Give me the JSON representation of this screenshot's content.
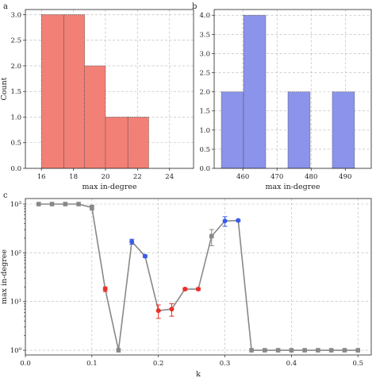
{
  "chart_data": [
    {
      "panel": "a",
      "type": "bar",
      "xlabel": "max in-degree",
      "ylabel": "Count",
      "xlim": [
        15,
        25.5
      ],
      "ylim": [
        0,
        3.1
      ],
      "xticks": [
        16,
        18,
        20,
        22,
        24
      ],
      "yticks": [
        0.0,
        0.5,
        1.0,
        1.5,
        2.0,
        2.5,
        3.0
      ],
      "bars": [
        {
          "x0": 16.0,
          "x1": 17.4,
          "value": 3
        },
        {
          "x0": 17.4,
          "x1": 18.7,
          "value": 3
        },
        {
          "x0": 18.7,
          "x1": 20.0,
          "value": 2
        },
        {
          "x0": 20.0,
          "x1": 21.4,
          "value": 1
        },
        {
          "x0": 21.4,
          "x1": 22.7,
          "value": 1
        }
      ],
      "color": "#f28076",
      "grid": true
    },
    {
      "panel": "b",
      "type": "bar",
      "xlabel": "max in-degree",
      "ylabel": "",
      "xlim": [
        451.6,
        497.6
      ],
      "ylim": [
        0,
        4.15
      ],
      "xticks": [
        460,
        470,
        480,
        490
      ],
      "yticks": [
        0.0,
        0.5,
        1.0,
        1.5,
        2.0,
        2.5,
        3.0,
        3.5,
        4.0
      ],
      "bars": [
        {
          "x0": 453.7,
          "x1": 460.2,
          "value": 2
        },
        {
          "x0": 460.2,
          "x1": 466.7,
          "value": 4
        },
        {
          "x0": 466.7,
          "x1": 473.2,
          "value": 0
        },
        {
          "x0": 473.2,
          "x1": 479.7,
          "value": 2
        },
        {
          "x0": 479.7,
          "x1": 486.2,
          "value": 0
        },
        {
          "x0": 486.2,
          "x1": 492.7,
          "value": 2
        }
      ],
      "color": "#8b93ea",
      "grid": true
    },
    {
      "panel": "c",
      "type": "line",
      "xlabel": "k",
      "ylabel": "max in-degree",
      "xlim": [
        0,
        0.52
      ],
      "ylim": [
        0.8,
        1300
      ],
      "yscale": "log",
      "xticks": [
        0.0,
        0.1,
        0.2,
        0.3,
        0.4,
        0.5
      ],
      "yticks": [
        1,
        10,
        100,
        1000
      ],
      "ytick_labels": [
        "10⁰",
        "10¹",
        "10²",
        "10³"
      ],
      "line_color": "#888888",
      "grid": true,
      "x": [
        0.02,
        0.04,
        0.06,
        0.08,
        0.1,
        0.12,
        0.14,
        0.16,
        0.18,
        0.2,
        0.22,
        0.24,
        0.26,
        0.28,
        0.3,
        0.32,
        0.34,
        0.36,
        0.38,
        0.4,
        0.42,
        0.44,
        0.46,
        0.48,
        0.5
      ],
      "y": [
        1000,
        1000,
        1000,
        1000,
        850,
        18,
        1,
        170,
        85,
        6.5,
        7,
        18,
        18,
        220,
        450,
        460,
        1,
        1,
        1,
        1,
        1,
        1,
        1,
        1,
        1
      ],
      "err_low": [
        0,
        0,
        0,
        0,
        100,
        2,
        0,
        20,
        5,
        2,
        2,
        1,
        1,
        80,
        100,
        20,
        0,
        0,
        0,
        0,
        0,
        0,
        0,
        0,
        0
      ],
      "err_high": [
        0,
        0,
        0,
        0,
        100,
        2,
        0,
        20,
        5,
        2,
        2,
        1,
        1,
        80,
        100,
        20,
        0,
        0,
        0,
        0,
        0,
        0,
        0,
        0,
        0
      ],
      "point_colors": [
        "#888888",
        "#888888",
        "#888888",
        "#888888",
        "#888888",
        "#e8312a",
        "#888888",
        "#3b5ce8",
        "#3b5ce8",
        "#e8312a",
        "#e8312a",
        "#e8312a",
        "#e8312a",
        "#888888",
        "#3b5ce8",
        "#3b5ce8",
        "#888888",
        "#888888",
        "#888888",
        "#888888",
        "#888888",
        "#888888",
        "#888888",
        "#888888",
        "#888888"
      ]
    }
  ]
}
